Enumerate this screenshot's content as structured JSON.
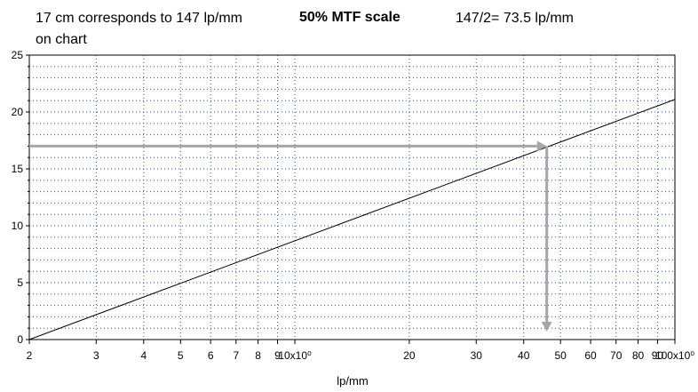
{
  "annotations": {
    "left_line1": "17 cm corresponds to 147 lp/mm",
    "left_line2": "on chart",
    "title": "50% MTF scale",
    "right": "147/2= 73.5 lp/mm"
  },
  "chart_data": {
    "type": "line",
    "title": "50% MTF scale",
    "xlabel": "lp/mm",
    "ylabel": "",
    "x_scale": "log",
    "xlim": [
      2,
      100
    ],
    "ylim": [
      0,
      25
    ],
    "grid": true,
    "x_ticks": [
      {
        "value": 2,
        "label": "2"
      },
      {
        "value": 3,
        "label": "3"
      },
      {
        "value": 4,
        "label": "4"
      },
      {
        "value": 5,
        "label": "5"
      },
      {
        "value": 6,
        "label": "6"
      },
      {
        "value": 7,
        "label": "7"
      },
      {
        "value": 8,
        "label": "8"
      },
      {
        "value": 9,
        "label": "9"
      },
      {
        "value": 10,
        "label": "10x10⁰"
      },
      {
        "value": 20,
        "label": "20"
      },
      {
        "value": 30,
        "label": "30"
      },
      {
        "value": 40,
        "label": "40"
      },
      {
        "value": 50,
        "label": "50"
      },
      {
        "value": 60,
        "label": "60"
      },
      {
        "value": 70,
        "label": "70"
      },
      {
        "value": 80,
        "label": "80"
      },
      {
        "value": 90,
        "label": "90"
      },
      {
        "value": 100,
        "label": "100x10⁰"
      }
    ],
    "y_ticks": [
      0,
      5,
      10,
      15,
      20,
      25
    ],
    "series": [
      {
        "x": [
          2,
          100
        ],
        "y": [
          0,
          21.1
        ],
        "color": "#000000"
      }
    ],
    "reference_arrows": {
      "color": "#a6a6a6",
      "y_value": 17,
      "x_value": 46,
      "x_arrow_end_y": 0.7
    }
  }
}
